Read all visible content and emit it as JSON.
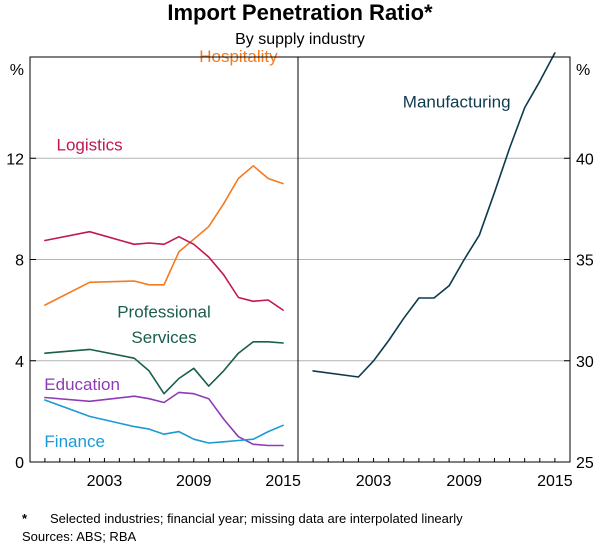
{
  "chart_data": {
    "type": "line",
    "title": "Import Penetration Ratio*",
    "subtitle": "By supply industry",
    "footnote_marker": "*",
    "footnote": "Selected industries; financial year; missing data are interpolated linearly",
    "sources": "Sources: ABS; RBA",
    "panels": [
      {
        "id": "left",
        "unit": "%",
        "xlim": [
          1998,
          2016
        ],
        "ylim": [
          0,
          16
        ],
        "xticks": [
          2003,
          2009,
          2015
        ],
        "yticks": [
          0,
          4,
          8,
          12
        ],
        "gridlines": [
          4,
          8,
          12
        ],
        "series": [
          {
            "name": "Hospitality",
            "color": "#F47A20",
            "x": [
              1999,
              2002,
              2005,
              2006,
              2007,
              2008,
              2009,
              2010,
              2011,
              2012,
              2013,
              2014,
              2015
            ],
            "y": [
              6.2,
              7.1,
              7.15,
              7.0,
              7.0,
              8.3,
              8.8,
              9.3,
              10.2,
              11.2,
              11.7,
              11.2,
              11.0
            ]
          },
          {
            "name": "Logistics",
            "color": "#C4164F",
            "x": [
              1999,
              2002,
              2005,
              2006,
              2007,
              2008,
              2009,
              2010,
              2011,
              2012,
              2013,
              2014,
              2015
            ],
            "y": [
              8.75,
              9.1,
              8.6,
              8.65,
              8.6,
              8.9,
              8.6,
              8.1,
              7.4,
              6.5,
              6.35,
              6.4,
              6.0
            ]
          },
          {
            "name": "Professional Services",
            "color": "#1A5E4E",
            "x": [
              1999,
              2002,
              2005,
              2006,
              2007,
              2008,
              2009,
              2010,
              2011,
              2012,
              2013,
              2014,
              2015
            ],
            "y": [
              4.3,
              4.45,
              4.1,
              3.6,
              2.7,
              3.3,
              3.7,
              3.0,
              3.6,
              4.3,
              4.75,
              4.75,
              4.7
            ]
          },
          {
            "name": "Education",
            "color": "#8E3BB8",
            "x": [
              1999,
              2002,
              2005,
              2006,
              2007,
              2008,
              2009,
              2010,
              2011,
              2012,
              2013,
              2014,
              2015
            ],
            "y": [
              2.55,
              2.4,
              2.6,
              2.5,
              2.35,
              2.75,
              2.7,
              2.5,
              1.7,
              1.0,
              0.7,
              0.65,
              0.65
            ]
          },
          {
            "name": "Finance",
            "color": "#1B9AD6",
            "x": [
              1999,
              2002,
              2005,
              2006,
              2007,
              2008,
              2009,
              2010,
              2011,
              2012,
              2013,
              2014,
              2015
            ],
            "y": [
              2.45,
              1.8,
              1.4,
              1.3,
              1.1,
              1.2,
              0.9,
              0.75,
              0.8,
              0.85,
              0.9,
              1.2,
              1.45
            ]
          }
        ]
      },
      {
        "id": "right",
        "unit": "%",
        "xlim": [
          1998,
          2016
        ],
        "ylim": [
          25,
          45
        ],
        "xticks": [
          2003,
          2009,
          2015
        ],
        "yticks": [
          25,
          30,
          35,
          40
        ],
        "gridlines": [
          30,
          35,
          40
        ],
        "series": [
          {
            "name": "Manufacturing",
            "color": "#0E3A4E",
            "x": [
              1999,
              2002,
              2003,
              2004,
              2005,
              2006,
              2007,
              2008,
              2009,
              2010,
              2011,
              2012,
              2013,
              2014,
              2015
            ],
            "y": [
              29.5,
              29.2,
              30.0,
              31.0,
              32.1,
              33.1,
              33.1,
              33.7,
              35.0,
              36.2,
              38.3,
              40.5,
              42.5,
              43.8,
              45.2
            ]
          }
        ]
      }
    ],
    "labels": [
      {
        "series": "Hospitality",
        "text": "Hospitality",
        "panel": "left",
        "x": 2012.0,
        "y": 15.8,
        "anchor": "middle"
      },
      {
        "series": "Logistics",
        "text": "Logistics",
        "panel": "left",
        "x": 2002.0,
        "y": 12.3,
        "anchor": "middle"
      },
      {
        "series": "Professional Services",
        "text": "Professional",
        "panel": "left",
        "x": 2007.0,
        "y": 5.7,
        "anchor": "middle"
      },
      {
        "series": "Professional Services",
        "text": "Services",
        "panel": "left",
        "x": 2007.0,
        "y": 4.7,
        "anchor": "middle"
      },
      {
        "series": "Education",
        "text": "Education",
        "panel": "left",
        "x": 2001.5,
        "y": 2.85,
        "anchor": "middle"
      },
      {
        "series": "Finance",
        "text": "Finance",
        "panel": "left",
        "x": 2001.0,
        "y": 0.6,
        "anchor": "middle"
      },
      {
        "series": "Manufacturing",
        "text": "Manufacturing",
        "panel": "right",
        "x": 2008.5,
        "y": 42.5,
        "anchor": "middle"
      }
    ]
  }
}
